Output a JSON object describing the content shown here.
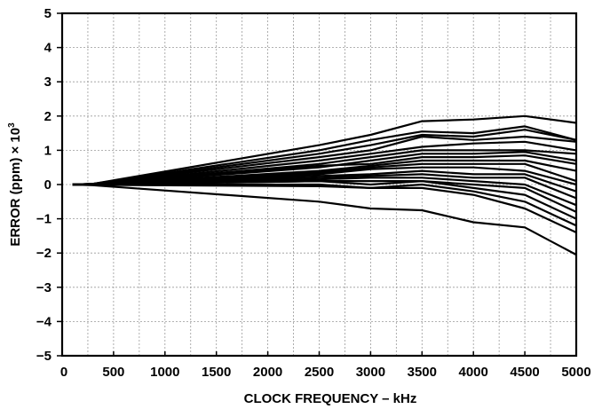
{
  "chart_data": {
    "type": "line",
    "title": "",
    "xlabel": "CLOCK FREQUENCY – kHz",
    "ylabel_main": "ERROR (ppm) × 10",
    "ylabel_exp": "3",
    "xlim": [
      0,
      5000
    ],
    "ylim": [
      -5,
      5
    ],
    "grid": true,
    "legend": "none",
    "x_ticks": [
      0,
      500,
      1000,
      1500,
      2000,
      2500,
      3000,
      3500,
      4000,
      4500,
      5000
    ],
    "x_tick_labels": [
      "0",
      "500",
      "1000",
      "1500",
      "2000",
      "2500",
      "3000",
      "3500",
      "4000",
      "4500",
      "5000"
    ],
    "y_ticks": [
      5,
      4,
      3,
      2,
      1,
      0,
      -1,
      -2,
      -3,
      -4,
      -5
    ],
    "y_tick_labels": [
      "5",
      "4",
      "3",
      "2",
      "1",
      "0",
      "−1",
      "−2",
      "−3",
      "−4",
      "−5"
    ],
    "x": [
      100,
      300,
      2500,
      3000,
      3500,
      4000,
      4500,
      5000
    ],
    "series": [
      {
        "values": [
          0,
          0.02,
          1.15,
          1.45,
          1.85,
          1.9,
          2.0,
          1.8
        ]
      },
      {
        "values": [
          0,
          0.02,
          1.0,
          1.3,
          1.55,
          1.5,
          1.7,
          1.3
        ]
      },
      {
        "values": [
          0,
          0.02,
          0.9,
          1.15,
          1.45,
          1.4,
          1.6,
          1.3
        ]
      },
      {
        "values": [
          0,
          0.02,
          0.8,
          1.0,
          1.4,
          1.3,
          1.4,
          1.25
        ]
      },
      {
        "values": [
          0,
          0.01,
          0.7,
          0.9,
          1.1,
          1.2,
          1.25,
          1.0
        ]
      },
      {
        "values": [
          0,
          0.01,
          0.6,
          0.8,
          1.0,
          1.0,
          1.0,
          0.9
        ]
      },
      {
        "values": [
          0,
          0.01,
          0.5,
          0.7,
          0.9,
          0.9,
          0.95,
          0.7
        ]
      },
      {
        "values": [
          0,
          0.01,
          0.55,
          0.6,
          0.8,
          0.8,
          0.85,
          0.6
        ]
      },
      {
        "values": [
          0,
          0.01,
          0.4,
          0.55,
          0.7,
          0.7,
          0.7,
          0.4
        ]
      },
      {
        "values": [
          0,
          0.0,
          0.35,
          0.5,
          0.6,
          0.6,
          0.6,
          0.1
        ]
      },
      {
        "values": [
          0,
          0.0,
          0.3,
          0.45,
          0.5,
          0.5,
          0.4,
          0.0
        ]
      },
      {
        "values": [
          0,
          0.0,
          0.25,
          0.3,
          0.4,
          0.3,
          0.3,
          -0.2
        ]
      },
      {
        "values": [
          0,
          0.0,
          0.2,
          0.25,
          0.3,
          0.2,
          0.2,
          -0.4
        ]
      },
      {
        "values": [
          0,
          0.0,
          0.15,
          0.2,
          0.2,
          0.1,
          0.0,
          -0.6
        ]
      },
      {
        "values": [
          0,
          0.0,
          0.1,
          0.1,
          0.1,
          0.0,
          -0.1,
          -0.8
        ]
      },
      {
        "values": [
          0,
          0.0,
          0.1,
          0.0,
          0.1,
          -0.1,
          -0.3,
          -1.0
        ]
      },
      {
        "values": [
          0,
          0.0,
          0.0,
          -0.1,
          0.0,
          -0.2,
          -0.5,
          -1.2
        ]
      },
      {
        "values": [
          0,
          -0.01,
          -0.05,
          -0.1,
          -0.1,
          -0.3,
          -0.7,
          -1.4
        ]
      },
      {
        "values": [
          0,
          -0.02,
          -0.5,
          -0.7,
          -0.75,
          -1.1,
          -1.25,
          -2.05
        ]
      }
    ]
  }
}
